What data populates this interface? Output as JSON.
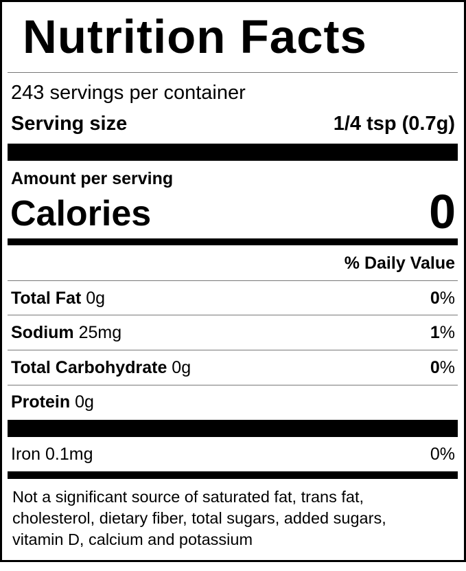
{
  "title": "Nutrition Facts",
  "servings_per_container": "243 servings per container",
  "serving_size": {
    "label": "Serving size",
    "value": "1/4 tsp (0.7g)"
  },
  "amount_per_serving": "Amount per serving",
  "calories": {
    "label": "Calories",
    "value": "0"
  },
  "daily_value_header": "% Daily Value",
  "nutrients": [
    {
      "name": "Total Fat",
      "amount": "0g",
      "dv_num": "0",
      "dv_pct": "%"
    },
    {
      "name": "Sodium",
      "amount": "25mg",
      "dv_num": "1",
      "dv_pct": "%"
    },
    {
      "name": "Total Carbohydrate",
      "amount": "0g",
      "dv_num": "0",
      "dv_pct": "%"
    },
    {
      "name": "Protein",
      "amount": "0g"
    }
  ],
  "vitamins": [
    {
      "name": "Iron 0.1mg",
      "dv": "0%"
    }
  ],
  "footnote": [
    "Not a significant source of saturated fat, trans fat,",
    "cholesterol, dietary fiber, total sugars, added sugars,",
    "vitamin D, calcium and potassium"
  ]
}
